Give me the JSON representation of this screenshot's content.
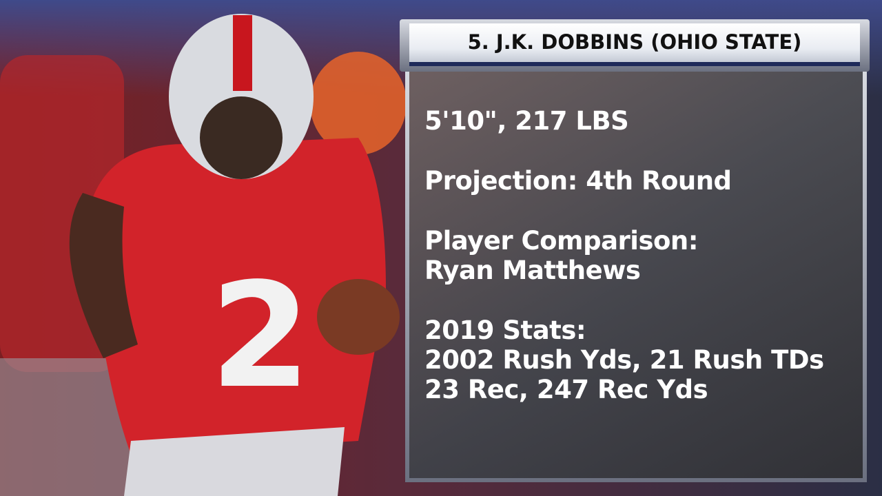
{
  "header": {
    "title": "5. J.K. DOBBINS (OHIO STATE)"
  },
  "sections": [
    {
      "lines": [
        "5'10\", 217 LBS"
      ]
    },
    {
      "lines": [
        "Projection: 4th Round"
      ]
    },
    {
      "lines": [
        "Player Comparison:",
        "Ryan Matthews"
      ]
    },
    {
      "lines": [
        "2019 Stats:",
        "2002 Rush Yds, 21 Rush TDs",
        "23 Rec, 247 Rec Yds"
      ]
    }
  ]
}
